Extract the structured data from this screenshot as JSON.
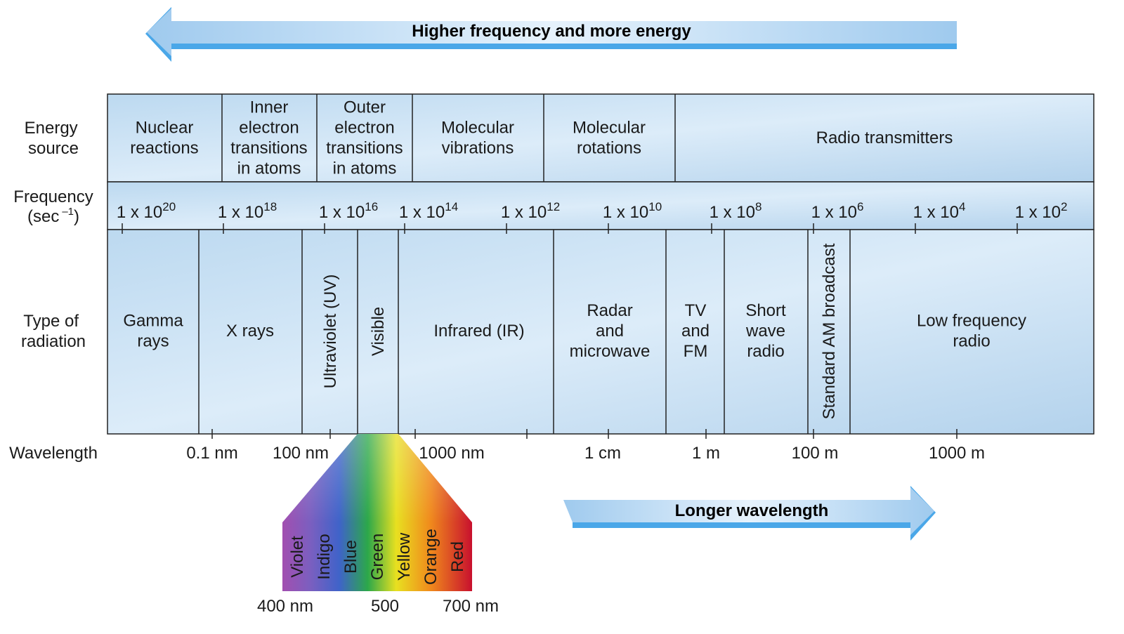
{
  "top_arrow": {
    "label": "Higher frequency and more energy"
  },
  "bottom_arrow": {
    "label": "Longer wavelength"
  },
  "row_labels": {
    "energy_source": [
      "Energy",
      "source"
    ],
    "frequency": [
      "Frequency",
      "(sec",
      "–1",
      ")"
    ],
    "type_of_radiation": [
      "Type of",
      "radiation"
    ],
    "wavelength": "Wavelength"
  },
  "energy_sources": [
    [
      "Nuclear",
      "reactions"
    ],
    [
      "Inner",
      "electron",
      "transitions",
      "in atoms"
    ],
    [
      "Outer",
      "electron",
      "transitions",
      "in atoms"
    ],
    [
      "Molecular",
      "vibrations"
    ],
    [
      "Molecular",
      "rotations"
    ],
    [
      "Radio transmitters"
    ]
  ],
  "frequencies": [
    {
      "base": "1 x 10",
      "exp": "20"
    },
    {
      "base": "1 x 10",
      "exp": "18"
    },
    {
      "base": "1 x 10",
      "exp": "16"
    },
    {
      "base": "1 x 10",
      "exp": "14"
    },
    {
      "base": "1 x 10",
      "exp": "12"
    },
    {
      "base": "1 x 10",
      "exp": "10"
    },
    {
      "base": "1 x 10",
      "exp": "8"
    },
    {
      "base": "1 x 10",
      "exp": "6"
    },
    {
      "base": "1 x 10",
      "exp": "4"
    },
    {
      "base": "1 x 10",
      "exp": "2"
    }
  ],
  "radiation_types": [
    {
      "lines": [
        "Gamma",
        "rays"
      ]
    },
    {
      "lines": [
        "X rays"
      ]
    },
    {
      "lines": [
        "Ultraviolet (UV)"
      ],
      "vertical": true
    },
    {
      "lines": [
        "Visible"
      ],
      "vertical": true
    },
    {
      "lines": [
        "Infrared (IR)"
      ]
    },
    {
      "lines": [
        "Radar",
        "and",
        "microwave"
      ]
    },
    {
      "lines": [
        "TV",
        "and",
        "FM"
      ]
    },
    {
      "lines": [
        "Short",
        "wave",
        "radio"
      ]
    },
    {
      "lines": [
        "Standard AM broadcast"
      ],
      "vertical": true
    },
    {
      "lines": [
        "Low frequency",
        "radio"
      ]
    }
  ],
  "wavelengths": [
    "0.1 nm",
    "100 nm",
    "1000 nm",
    "1 cm",
    "1 m",
    "100 m",
    "1000 m"
  ],
  "visible_spectrum": {
    "colors": [
      "Violet",
      "Indigo",
      "Blue",
      "Green",
      "Yellow",
      "Orange",
      "Red"
    ],
    "scale": [
      "400 nm",
      "500",
      "700 nm"
    ]
  }
}
